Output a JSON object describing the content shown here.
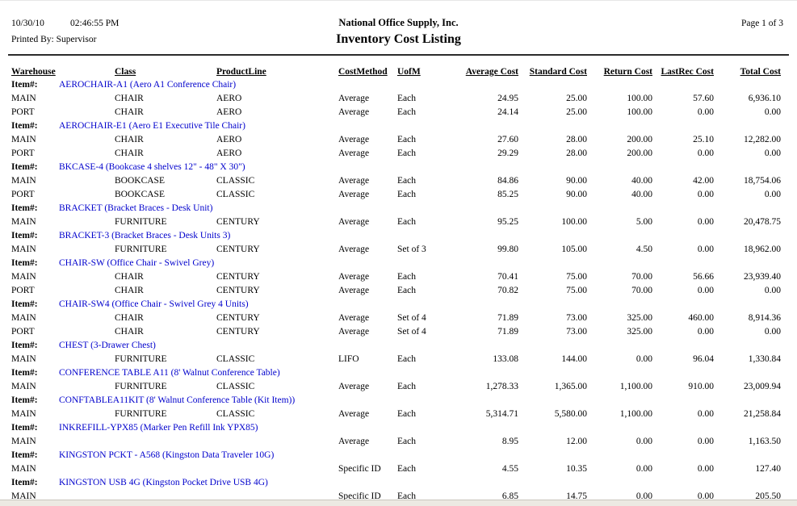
{
  "report": {
    "date": "10/30/10",
    "time": "02:46:55 PM",
    "printed_by": "Printed By: Supervisor",
    "company": "National Office Supply, Inc.",
    "title": "Inventory Cost Listing",
    "page": "Page 1 of 3",
    "item_label": "Item#:"
  },
  "colors": {
    "item_link_blue": "#0000CC",
    "text": "#000000",
    "bottom_band": "#ECE9E2"
  },
  "columns": [
    "Warehouse",
    "Class",
    "ProductLine",
    "CostMethod",
    "UofM",
    "Average Cost",
    "Standard Cost",
    "Return Cost",
    "LastRec Cost",
    "Total Cost"
  ],
  "groups": [
    {
      "item": "AEROCHAIR-A1 (Aero A1 Conference Chair)",
      "rows": [
        {
          "warehouse": "MAIN",
          "class": "CHAIR",
          "product_line": "AERO",
          "cost_method": "Average",
          "uom": "Each",
          "average_cost": "24.95",
          "standard_cost": "25.00",
          "return_cost": "100.00",
          "last_rec_cost": "57.60",
          "total_cost": "6,936.10"
        },
        {
          "warehouse": "PORT",
          "class": "CHAIR",
          "product_line": "AERO",
          "cost_method": "Average",
          "uom": "Each",
          "average_cost": "24.14",
          "standard_cost": "25.00",
          "return_cost": "100.00",
          "last_rec_cost": "0.00",
          "total_cost": "0.00"
        }
      ]
    },
    {
      "item": "AEROCHAIR-E1 (Aero E1 Executive Tile Chair)",
      "rows": [
        {
          "warehouse": "MAIN",
          "class": "CHAIR",
          "product_line": "AERO",
          "cost_method": "Average",
          "uom": "Each",
          "average_cost": "27.60",
          "standard_cost": "28.00",
          "return_cost": "200.00",
          "last_rec_cost": "25.10",
          "total_cost": "12,282.00"
        },
        {
          "warehouse": "PORT",
          "class": "CHAIR",
          "product_line": "AERO",
          "cost_method": "Average",
          "uom": "Each",
          "average_cost": "29.29",
          "standard_cost": "28.00",
          "return_cost": "200.00",
          "last_rec_cost": "0.00",
          "total_cost": "0.00"
        }
      ]
    },
    {
      "item": "BKCASE-4 (Bookcase 4 shelves 12\" - 48\" X 30\")",
      "rows": [
        {
          "warehouse": "MAIN",
          "class": "BOOKCASE",
          "product_line": "CLASSIC",
          "cost_method": "Average",
          "uom": "Each",
          "average_cost": "84.86",
          "standard_cost": "90.00",
          "return_cost": "40.00",
          "last_rec_cost": "42.00",
          "total_cost": "18,754.06"
        },
        {
          "warehouse": "PORT",
          "class": "BOOKCASE",
          "product_line": "CLASSIC",
          "cost_method": "Average",
          "uom": "Each",
          "average_cost": "85.25",
          "standard_cost": "90.00",
          "return_cost": "40.00",
          "last_rec_cost": "0.00",
          "total_cost": "0.00"
        }
      ]
    },
    {
      "item": "BRACKET (Bracket Braces - Desk Unit)",
      "rows": [
        {
          "warehouse": "MAIN",
          "class": "FURNITURE",
          "product_line": "CENTURY",
          "cost_method": "Average",
          "uom": "Each",
          "average_cost": "95.25",
          "standard_cost": "100.00",
          "return_cost": "5.00",
          "last_rec_cost": "0.00",
          "total_cost": "20,478.75"
        }
      ]
    },
    {
      "item": "BRACKET-3 (Bracket Braces - Desk Units 3)",
      "rows": [
        {
          "warehouse": "MAIN",
          "class": "FURNITURE",
          "product_line": "CENTURY",
          "cost_method": "Average",
          "uom": "Set of 3",
          "average_cost": "99.80",
          "standard_cost": "105.00",
          "return_cost": "4.50",
          "last_rec_cost": "0.00",
          "total_cost": "18,962.00"
        }
      ]
    },
    {
      "item": "CHAIR-SW (Office Chair - Swivel Grey)",
      "rows": [
        {
          "warehouse": "MAIN",
          "class": "CHAIR",
          "product_line": "CENTURY",
          "cost_method": "Average",
          "uom": "Each",
          "average_cost": "70.41",
          "standard_cost": "75.00",
          "return_cost": "70.00",
          "last_rec_cost": "56.66",
          "total_cost": "23,939.40"
        },
        {
          "warehouse": "PORT",
          "class": "CHAIR",
          "product_line": "CENTURY",
          "cost_method": "Average",
          "uom": "Each",
          "average_cost": "70.82",
          "standard_cost": "75.00",
          "return_cost": "70.00",
          "last_rec_cost": "0.00",
          "total_cost": "0.00"
        }
      ]
    },
    {
      "item": "CHAIR-SW4 (Office Chair - Swivel Grey 4 Units)",
      "rows": [
        {
          "warehouse": "MAIN",
          "class": "CHAIR",
          "product_line": "CENTURY",
          "cost_method": "Average",
          "uom": "Set of 4",
          "average_cost": "71.89",
          "standard_cost": "73.00",
          "return_cost": "325.00",
          "last_rec_cost": "460.00",
          "total_cost": "8,914.36"
        },
        {
          "warehouse": "PORT",
          "class": "CHAIR",
          "product_line": "CENTURY",
          "cost_method": "Average",
          "uom": "Set of 4",
          "average_cost": "71.89",
          "standard_cost": "73.00",
          "return_cost": "325.00",
          "last_rec_cost": "0.00",
          "total_cost": "0.00"
        }
      ]
    },
    {
      "item": "CHEST (3-Drawer Chest)",
      "rows": [
        {
          "warehouse": "MAIN",
          "class": "FURNITURE",
          "product_line": "CLASSIC",
          "cost_method": "LIFO",
          "uom": "Each",
          "average_cost": "133.08",
          "standard_cost": "144.00",
          "return_cost": "0.00",
          "last_rec_cost": "96.04",
          "total_cost": "1,330.84"
        }
      ]
    },
    {
      "item": "CONFERENCE TABLE A11 (8' Walnut Conference Table)",
      "rows": [
        {
          "warehouse": "MAIN",
          "class": "FURNITURE",
          "product_line": "CLASSIC",
          "cost_method": "Average",
          "uom": "Each",
          "average_cost": "1,278.33",
          "standard_cost": "1,365.00",
          "return_cost": "1,100.00",
          "last_rec_cost": "910.00",
          "total_cost": "23,009.94"
        }
      ]
    },
    {
      "item": "CONFTABLEA11KIT (8' Walnut Conference Table (Kit Item))",
      "rows": [
        {
          "warehouse": "MAIN",
          "class": "FURNITURE",
          "product_line": "CLASSIC",
          "cost_method": "Average",
          "uom": "Each",
          "average_cost": "5,314.71",
          "standard_cost": "5,580.00",
          "return_cost": "1,100.00",
          "last_rec_cost": "0.00",
          "total_cost": "21,258.84"
        }
      ]
    },
    {
      "item": "INKREFILL-YPX85 (Marker Pen Refill Ink YPX85)",
      "rows": [
        {
          "warehouse": "MAIN",
          "class": "",
          "product_line": "",
          "cost_method": "Average",
          "uom": "Each",
          "average_cost": "8.95",
          "standard_cost": "12.00",
          "return_cost": "0.00",
          "last_rec_cost": "0.00",
          "total_cost": "1,163.50"
        }
      ]
    },
    {
      "item": "KINGSTON PCKT - A568 (Kingston Data Traveler 10G)",
      "rows": [
        {
          "warehouse": "MAIN",
          "class": "",
          "product_line": "",
          "cost_method": "Specific ID",
          "uom": "Each",
          "average_cost": "4.55",
          "standard_cost": "10.35",
          "return_cost": "0.00",
          "last_rec_cost": "0.00",
          "total_cost": "127.40"
        }
      ]
    },
    {
      "item": "KINGSTON USB 4G (Kingston Pocket Drive USB 4G)",
      "rows": [
        {
          "warehouse": "MAIN",
          "class": "",
          "product_line": "",
          "cost_method": "Specific ID",
          "uom": "Each",
          "average_cost": "6.85",
          "standard_cost": "14.75",
          "return_cost": "0.00",
          "last_rec_cost": "0.00",
          "total_cost": "205.50"
        }
      ]
    }
  ]
}
